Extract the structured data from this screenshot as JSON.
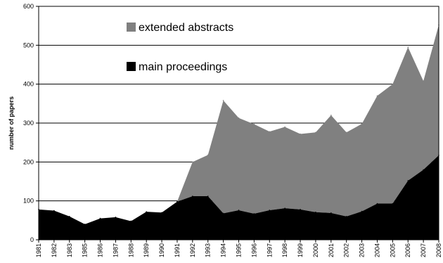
{
  "chart_data": {
    "type": "area",
    "stacked": true,
    "title": "",
    "xlabel": "",
    "ylabel": "number of papers",
    "ylim": [
      0,
      600
    ],
    "yticks": [
      0,
      100,
      200,
      300,
      400,
      500,
      600
    ],
    "grid": "horizontal",
    "legend_position": "top-center",
    "x": [
      "1981",
      "1982",
      "1983",
      "1985",
      "1986",
      "1987",
      "1988",
      "1989",
      "1990",
      "1991",
      "1992",
      "1993",
      "1994",
      "1995",
      "1996",
      "1997",
      "1998",
      "1999",
      "2000",
      "2001",
      "2002",
      "2003",
      "2004",
      "2005",
      "2006",
      "2007",
      "2008"
    ],
    "series": [
      {
        "name": "main proceedings",
        "color": "#000000",
        "values": [
          78,
          75,
          60,
          40,
          55,
          58,
          48,
          72,
          70,
          98,
          112,
          112,
          68,
          76,
          67,
          76,
          81,
          78,
          71,
          69,
          60,
          73,
          93,
          93,
          152,
          180,
          217
        ]
      },
      {
        "name": "extended abstracts",
        "color": "#808080",
        "values": [
          0,
          0,
          0,
          0,
          0,
          0,
          0,
          0,
          0,
          0,
          88,
          106,
          290,
          237,
          230,
          202,
          209,
          194,
          205,
          251,
          216,
          225,
          277,
          307,
          343,
          228,
          335
        ]
      }
    ]
  }
}
